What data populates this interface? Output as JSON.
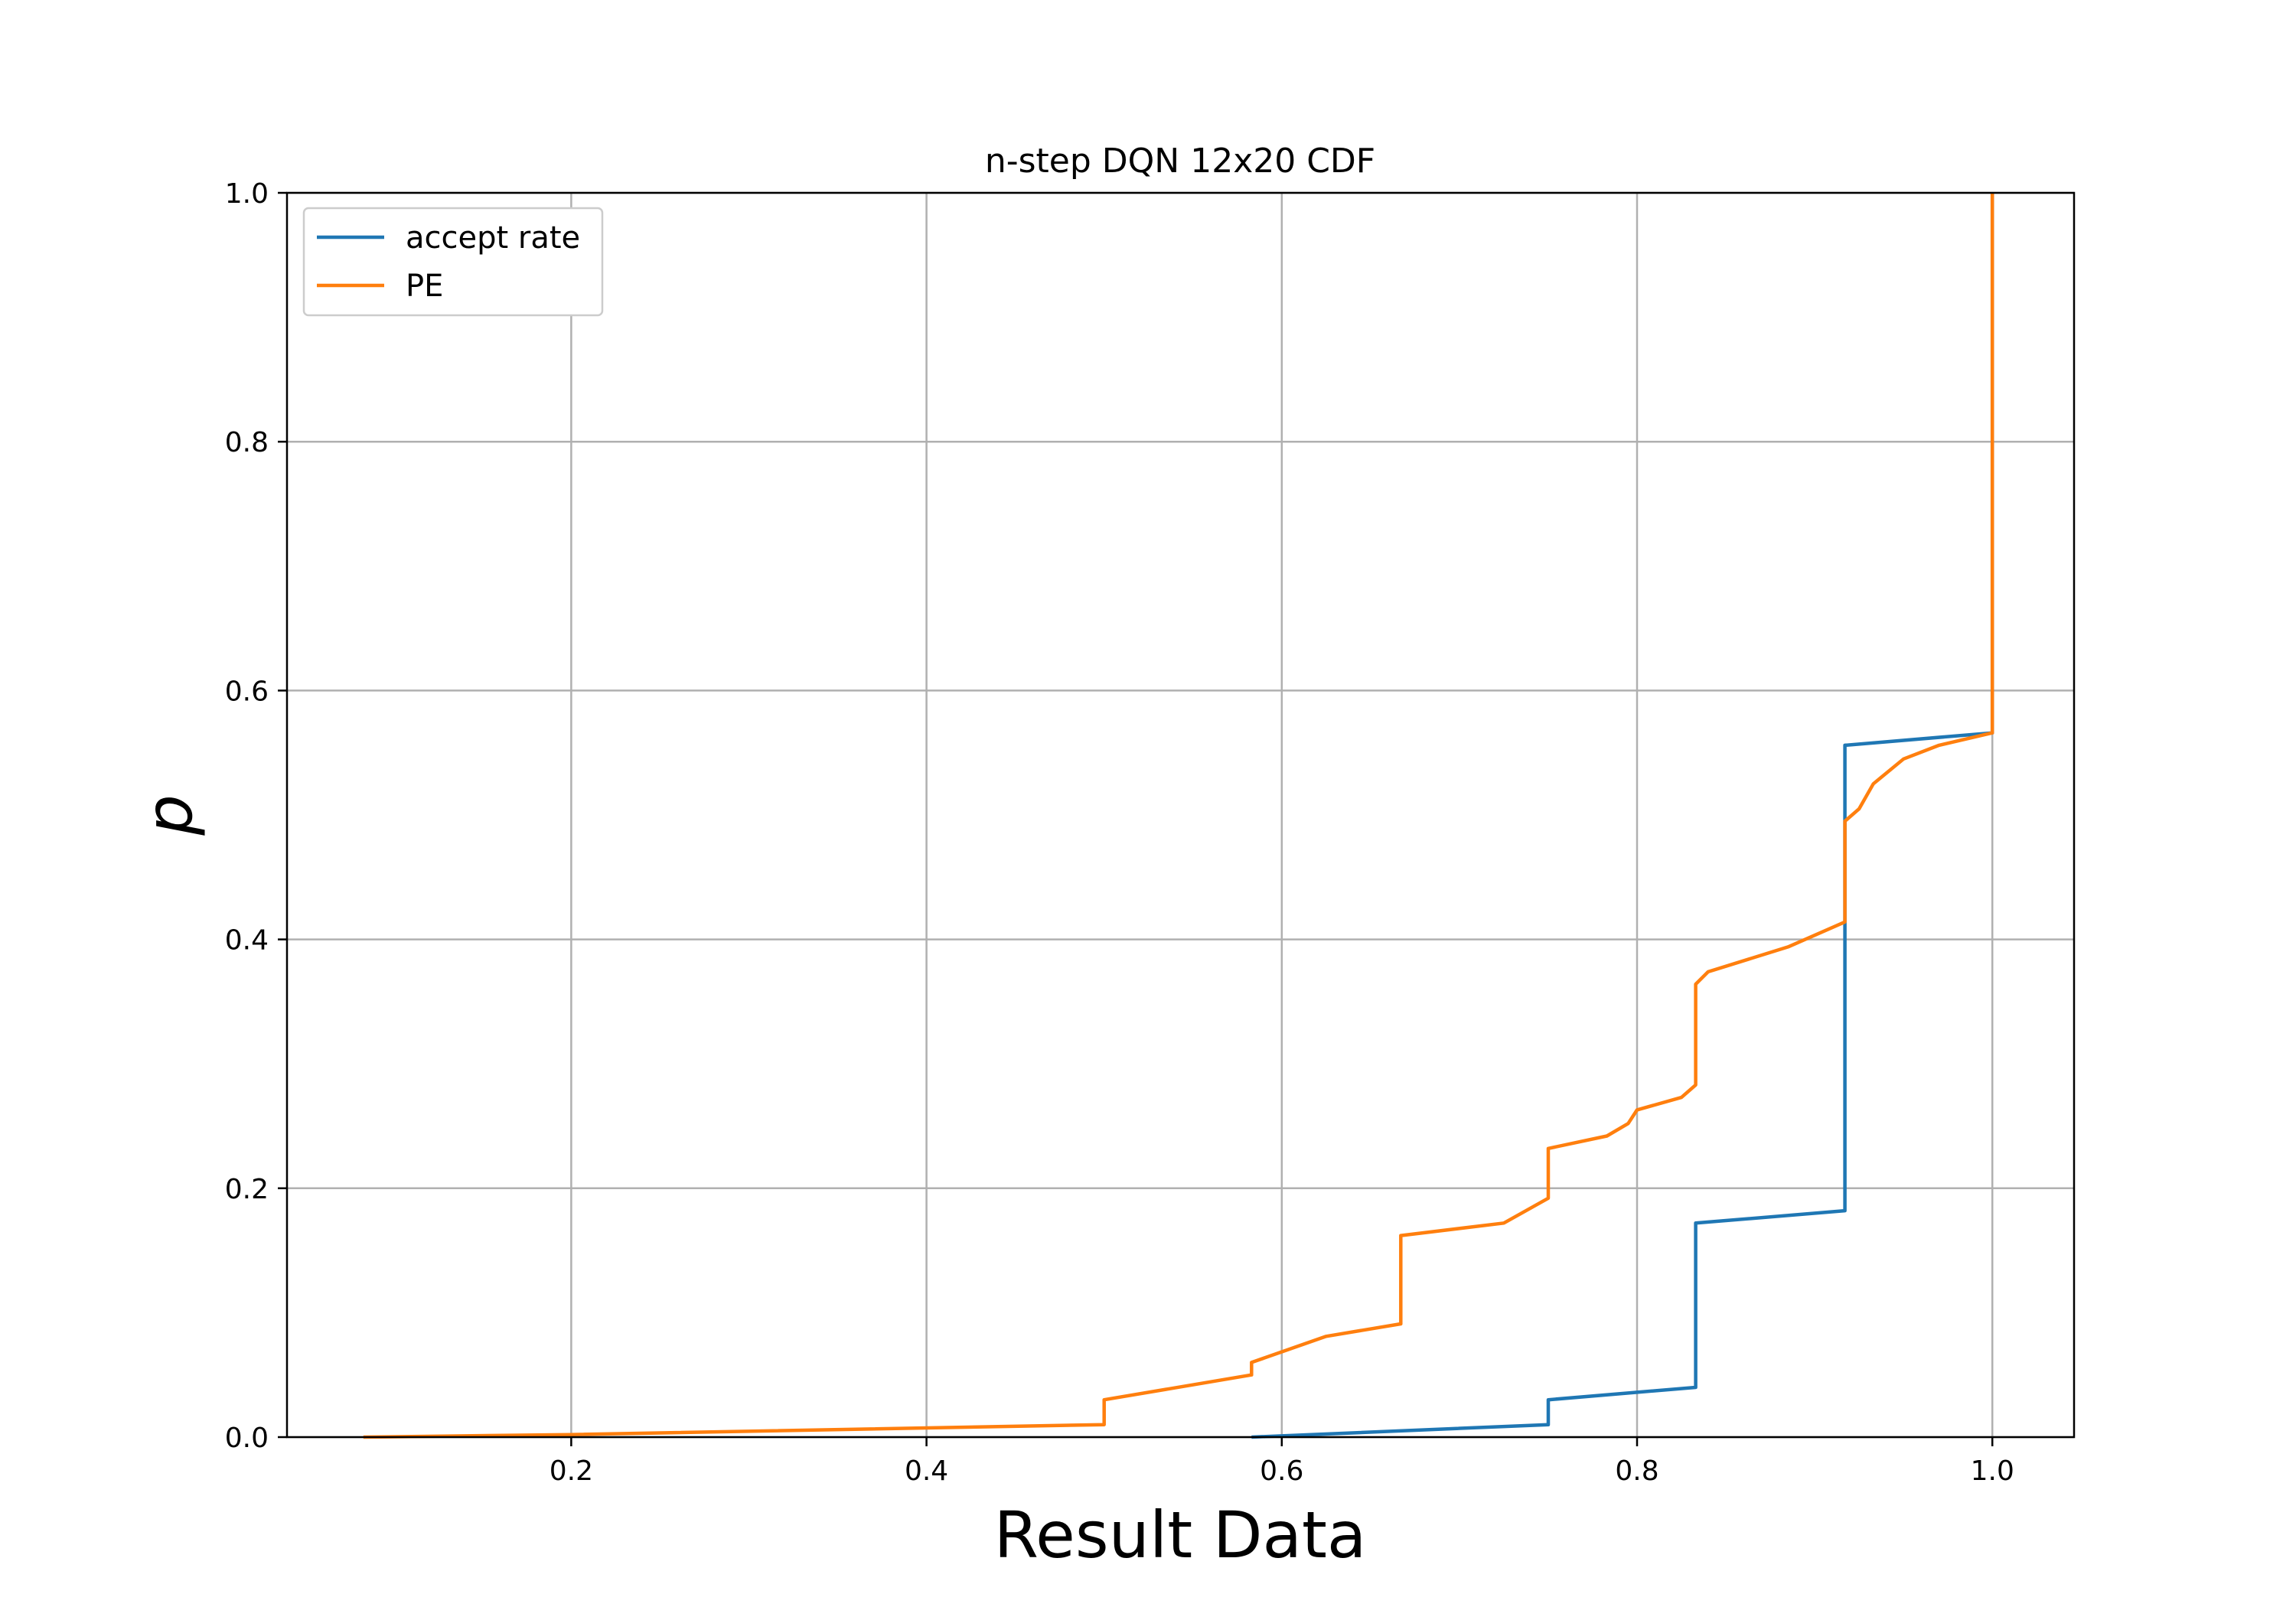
{
  "chart_data": {
    "type": "line",
    "title": "n-step DQN 12x20 CDF",
    "xlabel": "Result Data",
    "ylabel": "p",
    "xlim": [
      0.04,
      1.046
    ],
    "ylim": [
      0.0,
      1.0
    ],
    "xticks": [
      {
        "value": 0.2,
        "label": "0.2"
      },
      {
        "value": 0.4,
        "label": "0.4"
      },
      {
        "value": 0.6,
        "label": "0.6"
      },
      {
        "value": 0.8,
        "label": "0.8"
      },
      {
        "value": 1.0,
        "label": "1.0"
      }
    ],
    "yticks": [
      {
        "value": 0.0,
        "label": "0.0"
      },
      {
        "value": 0.2,
        "label": "0.2"
      },
      {
        "value": 0.4,
        "label": "0.4"
      },
      {
        "value": 0.6,
        "label": "0.6"
      },
      {
        "value": 0.8,
        "label": "0.8"
      },
      {
        "value": 1.0,
        "label": "1.0"
      }
    ],
    "grid": true,
    "legend_position": "upper-left",
    "series": [
      {
        "name": "accept rate",
        "color": "#1f77b4",
        "x": [
          0.583,
          0.75,
          0.75,
          0.833,
          0.833,
          0.917,
          0.917,
          1.0,
          1.0
        ],
        "y": [
          0.0,
          0.01,
          0.03,
          0.04,
          0.172,
          0.182,
          0.556,
          0.566,
          1.0
        ]
      },
      {
        "name": "PE",
        "color": "#ff7f0e",
        "x": [
          0.083,
          0.2,
          0.5,
          0.5,
          0.583,
          0.583,
          0.625,
          0.667,
          0.667,
          0.725,
          0.75,
          0.75,
          0.783,
          0.795,
          0.8,
          0.825,
          0.833,
          0.833,
          0.84,
          0.885,
          0.917,
          0.917,
          0.925,
          0.933,
          0.95,
          0.97,
          1.0,
          1.0
        ],
        "y": [
          0.0,
          0.002,
          0.01,
          0.03,
          0.05,
          0.06,
          0.081,
          0.091,
          0.162,
          0.172,
          0.192,
          0.232,
          0.242,
          0.252,
          0.263,
          0.273,
          0.283,
          0.364,
          0.374,
          0.394,
          0.414,
          0.495,
          0.505,
          0.525,
          0.545,
          0.556,
          0.566,
          1.0
        ]
      }
    ]
  }
}
